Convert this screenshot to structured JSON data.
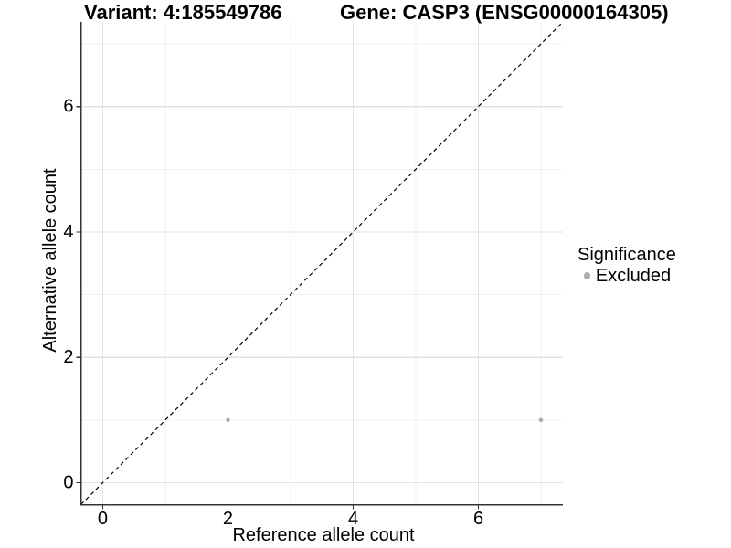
{
  "chart_data": {
    "type": "scatter",
    "titles": {
      "variant": "Variant: 4:185549786",
      "gene": "Gene: CASP3 (ENSG00000164305)"
    },
    "xlabel": "Reference allele count",
    "ylabel": "Alternative allele count",
    "xlim": [
      -0.35,
      7.35
    ],
    "ylim": [
      -0.35,
      7.35
    ],
    "x_ticks": [
      0,
      2,
      4,
      6
    ],
    "y_ticks": [
      0,
      2,
      4,
      6
    ],
    "x_minor_ticks": [
      1,
      3,
      5,
      7
    ],
    "y_minor_ticks": [
      1,
      3,
      5,
      7
    ],
    "grid": "major+minor",
    "legend": {
      "title": "Significance",
      "position": "right"
    },
    "series": [
      {
        "name": "Excluded",
        "color": "#adadad",
        "points": [
          {
            "x": 2,
            "y": 1
          },
          {
            "x": 7,
            "y": 1
          }
        ]
      }
    ],
    "reference_line": {
      "type": "identity",
      "slope": 1,
      "intercept": 0,
      "style": "dashed",
      "color": "#000000"
    }
  },
  "style": {
    "background": "#ffffff",
    "grid_major_color": "#e2e2e2",
    "grid_minor_color": "#f0f0f0",
    "axis_color": "#333333",
    "tick_label_color": "#000000",
    "point_color": "#adadad"
  }
}
